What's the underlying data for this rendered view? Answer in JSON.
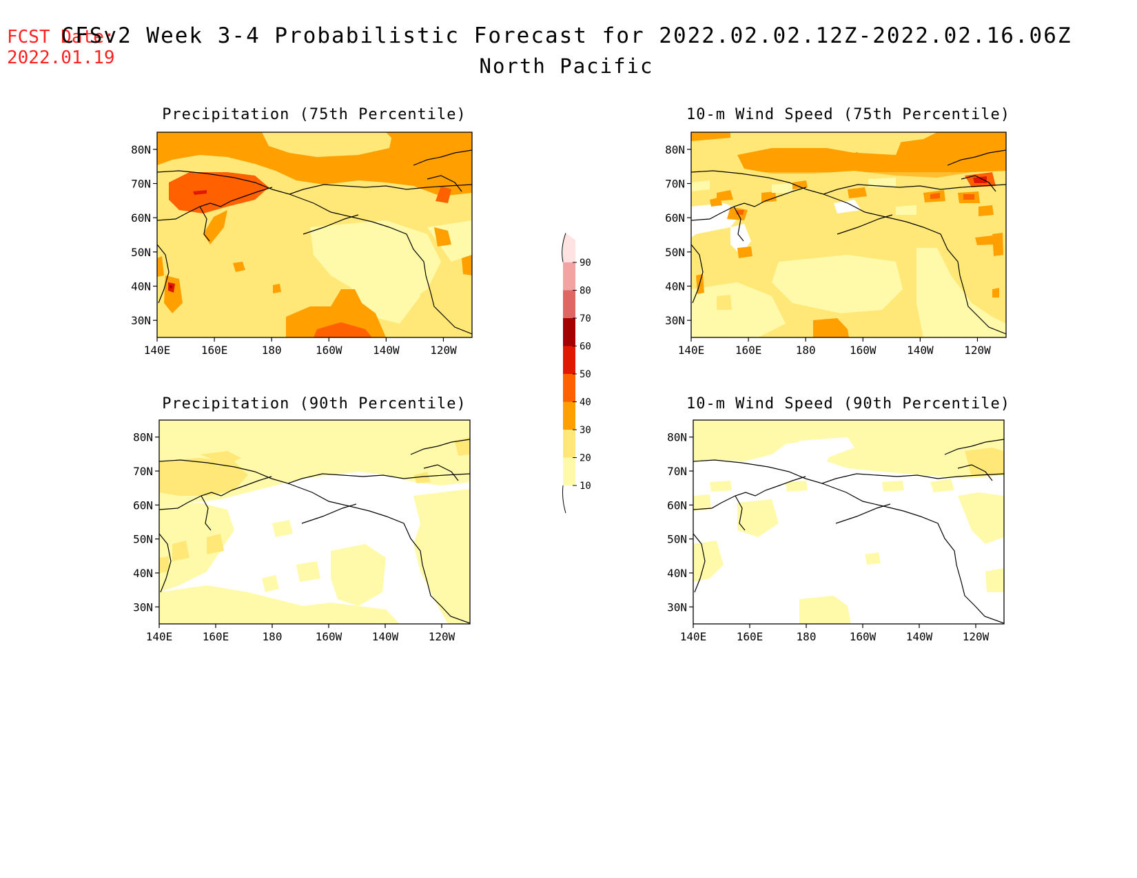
{
  "header": {
    "fcst_label": "FCST Date:",
    "fcst_date": "2022.01.19",
    "title": "CFSv2 Week 3-4 Probabilistic Forecast for 2022.02.02.12Z-2022.02.16.06Z",
    "region": "North Pacific"
  },
  "colorbar": {
    "levels": [
      "10",
      "20",
      "30",
      "40",
      "50",
      "60",
      "70",
      "80",
      "90"
    ],
    "colors": [
      "#fffaaa",
      "#ffe878",
      "#ffa000",
      "#ff6000",
      "#e11800",
      "#a50000",
      "#e06666",
      "#f4a3a3",
      "#ffe3e3"
    ]
  },
  "axes": {
    "lon_labels": [
      "140E",
      "160E",
      "180",
      "160W",
      "140W",
      "120W"
    ],
    "lat_labels": [
      "30N",
      "40N",
      "50N",
      "60N",
      "70N",
      "80N"
    ]
  },
  "panels": [
    {
      "id": "precip75",
      "title": "Precipitation (75th Percentile)"
    },
    {
      "id": "wind75",
      "title": "10-m Wind Speed (75th Percentile)"
    },
    {
      "id": "precip90",
      "title": "Precipitation (90th Percentile)"
    },
    {
      "id": "wind90",
      "title": "10-m Wind Speed (90th Percentile)"
    }
  ]
}
